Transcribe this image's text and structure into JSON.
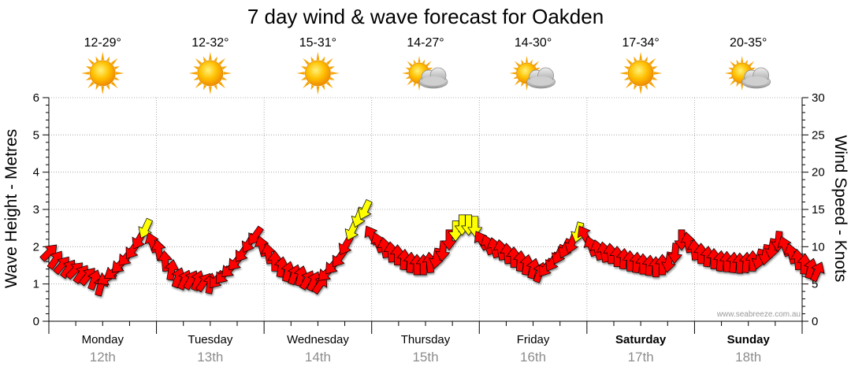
{
  "chart_data": {
    "type": "line",
    "title": "7 day wind & wave forecast for Oakden",
    "ylabel_left": "Wave Height - Metres",
    "ylabel_right": "Wind Speed - Knots",
    "ylim_left": [
      0,
      6
    ],
    "ylim_right": [
      0,
      30
    ],
    "yticks_left": [
      "0",
      "1",
      "2",
      "3",
      "4",
      "5",
      "6"
    ],
    "yticks_right": [
      "0",
      "5",
      "10",
      "15",
      "20",
      "25",
      "30"
    ],
    "grid": true,
    "watermark": "www.seabreeze.com.au",
    "colors": {
      "normal": "#ff0000",
      "strong": "#ffff00",
      "arrow_stroke": "#000000",
      "grid": "#999999"
    },
    "days": [
      {
        "name": "Monday",
        "date": "12th",
        "bold": false,
        "temp": "12-29°",
        "weather_icon": "sun-icon"
      },
      {
        "name": "Tuesday",
        "date": "13th",
        "bold": false,
        "temp": "12-32°",
        "weather_icon": "sun-icon"
      },
      {
        "name": "Wednesday",
        "date": "14th",
        "bold": false,
        "temp": "15-31°",
        "weather_icon": "sun-icon"
      },
      {
        "name": "Thursday",
        "date": "15th",
        "bold": false,
        "temp": "14-27°",
        "weather_icon": "sun-cloud-icon"
      },
      {
        "name": "Friday",
        "date": "16th",
        "bold": false,
        "temp": "14-30°",
        "weather_icon": "sun-cloud-icon"
      },
      {
        "name": "Saturday",
        "date": "17th",
        "bold": true,
        "temp": "17-34°",
        "weather_icon": "sun-icon"
      },
      {
        "name": "Sunday",
        "date": "18th",
        "bold": true,
        "temp": "20-35°",
        "weather_icon": "sun-cloud-icon"
      }
    ],
    "series": [
      {
        "name": "wind",
        "units": "knots",
        "x_unit": "day index (0 = Monday 00:00)",
        "points": [
          [
            0.0,
            9.2,
            225
          ],
          [
            0.06,
            8.2,
            215
          ],
          [
            0.12,
            7.5,
            220
          ],
          [
            0.18,
            7.0,
            215
          ],
          [
            0.24,
            6.8,
            225
          ],
          [
            0.3,
            6.3,
            215
          ],
          [
            0.36,
            6.0,
            220
          ],
          [
            0.42,
            5.5,
            200
          ],
          [
            0.48,
            4.7,
            195
          ],
          [
            0.54,
            5.8,
            60
          ],
          [
            0.6,
            6.6,
            55
          ],
          [
            0.66,
            7.6,
            45
          ],
          [
            0.72,
            8.6,
            40
          ],
          [
            0.78,
            9.6,
            35
          ],
          [
            0.84,
            11.0,
            30
          ],
          [
            0.9,
            12.5,
            25
          ],
          [
            0.96,
            10.5,
            160
          ],
          [
            1.02,
            9.5,
            170
          ],
          [
            1.08,
            8.0,
            175
          ],
          [
            1.14,
            6.8,
            190
          ],
          [
            1.2,
            5.8,
            200
          ],
          [
            1.26,
            5.5,
            205
          ],
          [
            1.32,
            5.5,
            210
          ],
          [
            1.38,
            5.4,
            200
          ],
          [
            1.44,
            5.2,
            215
          ],
          [
            1.5,
            5.0,
            190
          ],
          [
            1.56,
            5.6,
            40
          ],
          [
            1.62,
            6.2,
            40
          ],
          [
            1.68,
            7.0,
            45
          ],
          [
            1.74,
            8.0,
            40
          ],
          [
            1.8,
            9.2,
            35
          ],
          [
            1.86,
            10.5,
            30
          ],
          [
            1.92,
            11.5,
            35
          ],
          [
            1.98,
            10.0,
            165
          ],
          [
            2.04,
            9.0,
            170
          ],
          [
            2.1,
            8.0,
            180
          ],
          [
            2.16,
            7.2,
            190
          ],
          [
            2.22,
            6.6,
            195
          ],
          [
            2.28,
            6.2,
            200
          ],
          [
            2.34,
            6.0,
            195
          ],
          [
            2.4,
            5.5,
            210
          ],
          [
            2.46,
            5.3,
            205
          ],
          [
            2.52,
            4.9,
            215
          ],
          [
            2.58,
            6.5,
            45
          ],
          [
            2.64,
            7.5,
            40
          ],
          [
            2.7,
            8.5,
            35
          ],
          [
            2.76,
            10.2,
            30
          ],
          [
            2.82,
            12.2,
            25
          ],
          [
            2.88,
            14.0,
            20
          ],
          [
            2.94,
            15.0,
            25
          ],
          [
            3.0,
            11.5,
            150
          ],
          [
            3.06,
            10.5,
            160
          ],
          [
            3.12,
            9.8,
            170
          ],
          [
            3.18,
            9.2,
            175
          ],
          [
            3.24,
            8.8,
            180
          ],
          [
            3.3,
            8.2,
            185
          ],
          [
            3.36,
            7.8,
            185
          ],
          [
            3.42,
            7.5,
            180
          ],
          [
            3.48,
            7.5,
            180
          ],
          [
            3.54,
            7.8,
            175
          ],
          [
            3.6,
            8.5,
            10
          ],
          [
            3.66,
            9.5,
            5
          ],
          [
            3.72,
            11.0,
            0
          ],
          [
            3.78,
            12.2,
            0
          ],
          [
            3.84,
            13.0,
            0
          ],
          [
            3.9,
            13.0,
            0
          ],
          [
            3.96,
            12.8,
            0
          ],
          [
            4.02,
            10.8,
            150
          ],
          [
            4.08,
            10.2,
            160
          ],
          [
            4.14,
            9.8,
            165
          ],
          [
            4.2,
            9.5,
            170
          ],
          [
            4.26,
            9.0,
            175
          ],
          [
            4.32,
            8.5,
            180
          ],
          [
            4.38,
            8.0,
            185
          ],
          [
            4.44,
            7.5,
            190
          ],
          [
            4.5,
            7.0,
            195
          ],
          [
            4.56,
            6.5,
            200
          ],
          [
            4.62,
            7.2,
            35
          ],
          [
            4.68,
            8.0,
            30
          ],
          [
            4.74,
            9.0,
            25
          ],
          [
            4.8,
            9.8,
            25
          ],
          [
            4.86,
            10.5,
            20
          ],
          [
            4.92,
            12.0,
            15
          ],
          [
            4.98,
            11.5,
            150
          ],
          [
            5.04,
            10.0,
            160
          ],
          [
            5.1,
            9.5,
            165
          ],
          [
            5.16,
            9.2,
            170
          ],
          [
            5.22,
            9.0,
            175
          ],
          [
            5.28,
            8.6,
            180
          ],
          [
            5.34,
            8.3,
            185
          ],
          [
            5.4,
            8.0,
            180
          ],
          [
            5.46,
            7.8,
            185
          ],
          [
            5.52,
            7.6,
            180
          ],
          [
            5.58,
            7.4,
            185
          ],
          [
            5.64,
            7.2,
            180
          ],
          [
            5.7,
            7.5,
            180
          ],
          [
            5.76,
            8.0,
            10
          ],
          [
            5.82,
            9.2,
            5
          ],
          [
            5.88,
            11.0,
            0
          ],
          [
            5.94,
            10.5,
            170
          ],
          [
            6.0,
            9.5,
            175
          ],
          [
            6.06,
            9.0,
            180
          ],
          [
            6.12,
            8.6,
            185
          ],
          [
            6.18,
            8.3,
            180
          ],
          [
            6.24,
            8.0,
            185
          ],
          [
            6.3,
            7.9,
            180
          ],
          [
            6.36,
            7.8,
            185
          ],
          [
            6.42,
            7.7,
            180
          ],
          [
            6.48,
            7.8,
            185
          ],
          [
            6.54,
            8.0,
            180
          ],
          [
            6.6,
            8.4,
            15
          ],
          [
            6.66,
            9.0,
            10
          ],
          [
            6.72,
            9.8,
            10
          ],
          [
            6.78,
            10.8,
            5
          ],
          [
            6.84,
            10.0,
            160
          ],
          [
            6.9,
            9.0,
            165
          ],
          [
            6.96,
            8.2,
            175
          ],
          [
            7.02,
            7.6,
            185
          ],
          [
            7.08,
            7.0,
            195
          ],
          [
            7.14,
            6.6,
            205
          ]
        ]
      }
    ]
  }
}
